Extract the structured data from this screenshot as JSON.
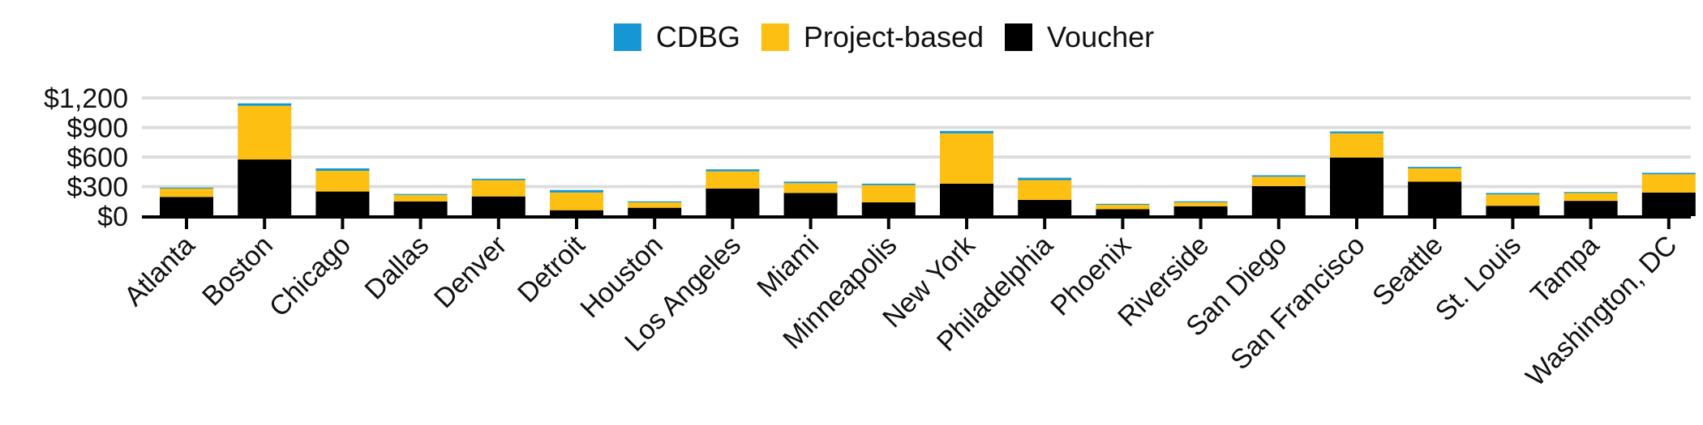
{
  "chart_data": {
    "type": "bar",
    "stacked": true,
    "categories": [
      "Atlanta",
      "Boston",
      "Chicago",
      "Dallas",
      "Denver",
      "Detroit",
      "Houston",
      "Los Angeles",
      "Miami",
      "Minneapolis",
      "New York",
      "Philadelphia",
      "Phoenix",
      "Riverside",
      "San Diego",
      "San Francisco",
      "Seattle",
      "St. Louis",
      "Tampa",
      "Washington, DC"
    ],
    "series": [
      {
        "name": "Voucher",
        "color": "#000000",
        "values": [
          195,
          575,
          250,
          150,
          200,
          60,
          85,
          280,
          235,
          140,
          330,
          165,
          70,
          100,
          305,
          595,
          350,
          105,
          155,
          240
        ]
      },
      {
        "name": "Project-based",
        "color": "#FDBF11",
        "values": [
          85,
          545,
          210,
          65,
          165,
          180,
          55,
          175,
          100,
          175,
          510,
          200,
          45,
          40,
          95,
          245,
          135,
          115,
          80,
          185
        ]
      },
      {
        "name": "CDBG",
        "color": "#1696D2",
        "values": [
          10,
          25,
          25,
          10,
          15,
          25,
          10,
          20,
          15,
          15,
          25,
          25,
          10,
          10,
          15,
          20,
          15,
          15,
          10,
          15
        ]
      }
    ],
    "legend_order": [
      "CDBG",
      "Project-based",
      "Voucher"
    ],
    "legend_position": "top-center",
    "ylim": [
      0,
      1200
    ],
    "yticks": [
      "$0",
      "$300",
      "$600",
      "$900",
      "$1,200"
    ],
    "ytick_values": [
      0,
      300,
      600,
      900,
      1200
    ],
    "grid": true,
    "gridline_color": "#dedddd",
    "title": "",
    "xlabel": "",
    "ylabel": ""
  }
}
